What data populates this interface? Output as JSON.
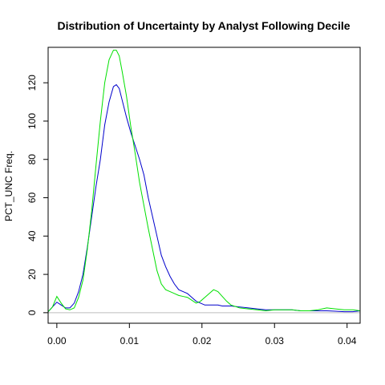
{
  "chart_data": {
    "type": "line",
    "title": "Distribution of Uncertainty by Analyst Following Decile",
    "xlabel": "",
    "ylabel": "PCT_UNC Freq.",
    "xlim": [
      -0.0012,
      0.0418
    ],
    "ylim": [
      -5.5,
      138.5
    ],
    "x_ticks": [
      0.0,
      0.01,
      0.02,
      0.03,
      0.04
    ],
    "x_tick_labels": [
      "0.00",
      "0.01",
      "0.02",
      "0.03",
      "0.04"
    ],
    "y_ticks": [
      0,
      20,
      40,
      60,
      80,
      100,
      120
    ],
    "y_tick_labels": [
      "0",
      "20",
      "40",
      "60",
      "80",
      "100",
      "120"
    ],
    "grid": false,
    "baseline": 0,
    "series": [
      {
        "color": "#0000cc",
        "x": [
          -0.0012,
          -0.0006,
          0.0,
          0.0006,
          0.0012,
          0.0018,
          0.0024,
          0.003,
          0.0036,
          0.0042,
          0.0048,
          0.0054,
          0.006,
          0.0066,
          0.0072,
          0.0078,
          0.0082,
          0.0086,
          0.009,
          0.0096,
          0.0102,
          0.0108,
          0.0114,
          0.012,
          0.0126,
          0.0132,
          0.0138,
          0.0144,
          0.015,
          0.0156,
          0.0162,
          0.0168,
          0.0174,
          0.018,
          0.0186,
          0.0192,
          0.0198,
          0.0204,
          0.021,
          0.0216,
          0.0222,
          0.0228,
          0.024,
          0.0252,
          0.0264,
          0.0276,
          0.0288,
          0.03,
          0.0312,
          0.0324,
          0.0336,
          0.0348,
          0.036,
          0.0372,
          0.0384,
          0.0396,
          0.0408,
          0.0418
        ],
        "y": [
          0.5,
          3,
          5.5,
          4,
          2.5,
          2.5,
          5,
          11,
          20,
          34,
          50,
          66,
          80,
          98,
          110,
          118,
          119,
          117,
          111,
          102,
          94,
          87,
          80,
          72,
          60,
          50,
          40,
          30,
          24,
          19,
          15,
          12,
          11,
          10,
          8,
          6,
          5,
          4,
          4,
          4,
          4,
          3.5,
          3.5,
          3,
          2.5,
          2,
          1.5,
          1.5,
          1.5,
          1.5,
          1,
          1,
          1,
          1,
          0.8,
          0.5,
          0.5,
          1
        ]
      },
      {
        "color": "#00e000",
        "x": [
          -0.0012,
          -0.0006,
          0.0,
          0.0006,
          0.0012,
          0.0018,
          0.0024,
          0.003,
          0.0036,
          0.0042,
          0.0048,
          0.0054,
          0.006,
          0.0066,
          0.0072,
          0.0078,
          0.0082,
          0.0086,
          0.009,
          0.0096,
          0.0102,
          0.0108,
          0.0114,
          0.012,
          0.0126,
          0.0132,
          0.0138,
          0.0144,
          0.015,
          0.0156,
          0.0162,
          0.0168,
          0.0174,
          0.018,
          0.0186,
          0.0192,
          0.0198,
          0.0204,
          0.021,
          0.0216,
          0.0222,
          0.0228,
          0.0234,
          0.024,
          0.0252,
          0.0264,
          0.0276,
          0.0288,
          0.03,
          0.0312,
          0.0324,
          0.0336,
          0.0348,
          0.036,
          0.0372,
          0.0384,
          0.0396,
          0.0408,
          0.0418
        ],
        "y": [
          0.5,
          3,
          8.5,
          5,
          2,
          1.5,
          2.5,
          8,
          17,
          33,
          53,
          77,
          100,
          120,
          132,
          137,
          137,
          134,
          126,
          113,
          97,
          83,
          68,
          56,
          44,
          33,
          22,
          15,
          12,
          11,
          10,
          9,
          8.5,
          8,
          6.5,
          5,
          6,
          8,
          10,
          12,
          11,
          8.5,
          6,
          4,
          2.5,
          2,
          1.5,
          1,
          1.5,
          1.5,
          1.5,
          1,
          1,
          1.5,
          2.5,
          2,
          1.5,
          1.5,
          1
        ]
      }
    ]
  }
}
